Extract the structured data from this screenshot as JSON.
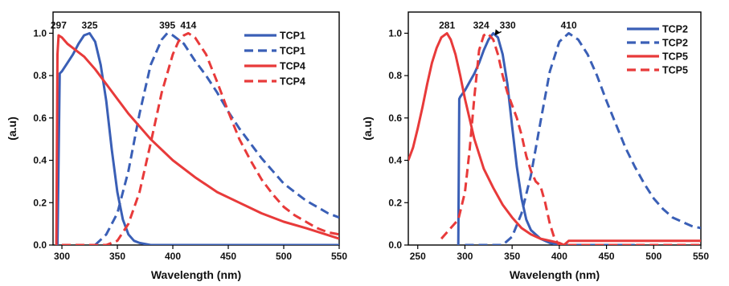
{
  "chart_data": [
    {
      "type": "line",
      "xlabel": "Wavelength (nm)",
      "ylabel": "(a.u)",
      "xlim": [
        292,
        550
      ],
      "ylim": [
        0,
        1.1
      ],
      "xticks": [
        300,
        350,
        400,
        450,
        500,
        550
      ],
      "yticks": [
        0.0,
        0.2,
        0.4,
        0.6,
        0.8,
        1.0
      ],
      "xtick_labels": [
        "300",
        "350",
        "400",
        "450",
        "500",
        "550"
      ],
      "ytick_labels": [
        "0.0",
        "0.2",
        "0.4",
        "0.6",
        "0.8",
        "1.0"
      ],
      "legend_position": "top-right",
      "annotations": [
        {
          "text": "297",
          "x": 297,
          "y": 1.0
        },
        {
          "text": "325",
          "x": 325,
          "y": 1.0
        },
        {
          "text": "395",
          "x": 395,
          "y": 1.0
        },
        {
          "text": "414",
          "x": 414,
          "y": 1.0
        }
      ],
      "series": [
        {
          "name": "TCP1",
          "color": "#3a5fb6",
          "dash": false,
          "x": [
            296,
            298,
            300,
            305,
            310,
            315,
            320,
            325,
            330,
            335,
            340,
            345,
            350,
            355,
            360,
            365,
            370,
            380,
            390,
            400,
            550
          ],
          "y": [
            0.0,
            0.81,
            0.82,
            0.86,
            0.9,
            0.95,
            0.99,
            1.0,
            0.96,
            0.85,
            0.68,
            0.45,
            0.25,
            0.12,
            0.05,
            0.02,
            0.01,
            0.0,
            0.0,
            0.0,
            0.0
          ]
        },
        {
          "name": "TCP1",
          "color": "#3a5fb6",
          "dash": true,
          "x": [
            330,
            340,
            350,
            360,
            370,
            380,
            390,
            395,
            400,
            410,
            420,
            430,
            440,
            450,
            460,
            470,
            480,
            490,
            500,
            510,
            520,
            530,
            540,
            550
          ],
          "y": [
            0.0,
            0.05,
            0.15,
            0.35,
            0.62,
            0.85,
            0.97,
            1.0,
            0.99,
            0.95,
            0.87,
            0.8,
            0.72,
            0.63,
            0.55,
            0.48,
            0.41,
            0.35,
            0.29,
            0.25,
            0.21,
            0.18,
            0.15,
            0.13
          ]
        },
        {
          "name": "TCP4",
          "color": "#e83a3a",
          "dash": false,
          "x": [
            295,
            296,
            297,
            300,
            305,
            310,
            320,
            330,
            340,
            350,
            360,
            380,
            400,
            420,
            440,
            460,
            480,
            500,
            520,
            550
          ],
          "y": [
            0.0,
            0.9,
            0.99,
            0.98,
            0.95,
            0.93,
            0.89,
            0.83,
            0.76,
            0.69,
            0.62,
            0.5,
            0.4,
            0.32,
            0.25,
            0.2,
            0.15,
            0.11,
            0.08,
            0.03
          ]
        },
        {
          "name": "TCP4",
          "color": "#e83a3a",
          "dash": true,
          "x": [
            300,
            340,
            350,
            360,
            370,
            380,
            390,
            400,
            405,
            410,
            414,
            420,
            430,
            440,
            450,
            460,
            470,
            480,
            490,
            500,
            510,
            520,
            530,
            540,
            550
          ],
          "y": [
            0.0,
            0.0,
            0.02,
            0.1,
            0.25,
            0.48,
            0.72,
            0.9,
            0.96,
            0.99,
            1.0,
            0.98,
            0.9,
            0.77,
            0.63,
            0.5,
            0.4,
            0.31,
            0.24,
            0.18,
            0.14,
            0.11,
            0.08,
            0.06,
            0.05
          ]
        }
      ]
    },
    {
      "type": "line",
      "xlabel": "Wavelength (nm)",
      "ylabel": "(a.u)",
      "xlim": [
        240,
        550
      ],
      "ylim": [
        0,
        1.1
      ],
      "xticks": [
        250,
        300,
        350,
        400,
        450,
        500,
        550
      ],
      "yticks": [
        0.0,
        0.2,
        0.4,
        0.6,
        0.8,
        1.0
      ],
      "xtick_labels": [
        "250",
        "300",
        "350",
        "400",
        "450",
        "500",
        "550"
      ],
      "ytick_labels": [
        "0.0",
        "0.2",
        "0.4",
        "0.6",
        "0.8",
        "1.0"
      ],
      "legend_position": "top-right",
      "annotations": [
        {
          "text": "281",
          "x": 281,
          "y": 1.0
        },
        {
          "text": "324",
          "x": 324,
          "y": 1.0
        },
        {
          "text": "330",
          "x": 330,
          "y": 1.0,
          "arrow": true
        },
        {
          "text": "410",
          "x": 410,
          "y": 1.0
        }
      ],
      "series": [
        {
          "name": "TCP2",
          "color": "#3a5fb6",
          "dash": false,
          "x": [
            293,
            294,
            295,
            300,
            305,
            310,
            315,
            320,
            325,
            330,
            335,
            340,
            345,
            350,
            355,
            360,
            365,
            370,
            380,
            390,
            400,
            480
          ],
          "y": [
            0.0,
            0.69,
            0.7,
            0.73,
            0.77,
            0.81,
            0.86,
            0.92,
            0.97,
            1.0,
            0.98,
            0.9,
            0.76,
            0.56,
            0.37,
            0.22,
            0.12,
            0.07,
            0.03,
            0.01,
            0.0,
            0.0
          ]
        },
        {
          "name": "TCP2",
          "color": "#3a5fb6",
          "dash": true,
          "x": [
            300,
            310,
            340,
            350,
            360,
            370,
            380,
            390,
            400,
            410,
            420,
            430,
            440,
            450,
            460,
            470,
            480,
            490,
            500,
            510,
            520,
            530,
            540,
            550
          ],
          "y": [
            0.0,
            0.0,
            0.0,
            0.04,
            0.15,
            0.33,
            0.58,
            0.82,
            0.96,
            1.0,
            0.97,
            0.9,
            0.8,
            0.68,
            0.57,
            0.46,
            0.37,
            0.29,
            0.22,
            0.17,
            0.13,
            0.11,
            0.09,
            0.08
          ]
        },
        {
          "name": "TCP5",
          "color": "#e83a3a",
          "dash": false,
          "x": [
            240,
            245,
            250,
            255,
            260,
            265,
            270,
            275,
            281,
            285,
            290,
            295,
            300,
            310,
            320,
            330,
            340,
            350,
            360,
            370,
            380,
            390,
            400,
            405,
            410,
            550
          ],
          "y": [
            0.4,
            0.46,
            0.55,
            0.65,
            0.76,
            0.86,
            0.93,
            0.98,
            1.0,
            0.97,
            0.9,
            0.8,
            0.69,
            0.5,
            0.36,
            0.27,
            0.19,
            0.13,
            0.08,
            0.05,
            0.03,
            0.02,
            0.01,
            0.0,
            0.02,
            0.02
          ]
        },
        {
          "name": "TCP5",
          "color": "#e83a3a",
          "dash": true,
          "x": [
            275,
            285,
            293,
            300,
            305,
            310,
            315,
            320,
            324,
            330,
            335,
            340,
            345,
            350,
            355,
            360,
            365,
            370,
            375,
            380,
            385,
            390,
            395,
            400,
            550
          ],
          "y": [
            0.03,
            0.08,
            0.12,
            0.25,
            0.45,
            0.7,
            0.92,
            0.99,
            1.0,
            0.97,
            0.9,
            0.8,
            0.72,
            0.66,
            0.6,
            0.52,
            0.42,
            0.35,
            0.3,
            0.28,
            0.2,
            0.1,
            0.03,
            0.0,
            0.0
          ]
        }
      ]
    }
  ]
}
